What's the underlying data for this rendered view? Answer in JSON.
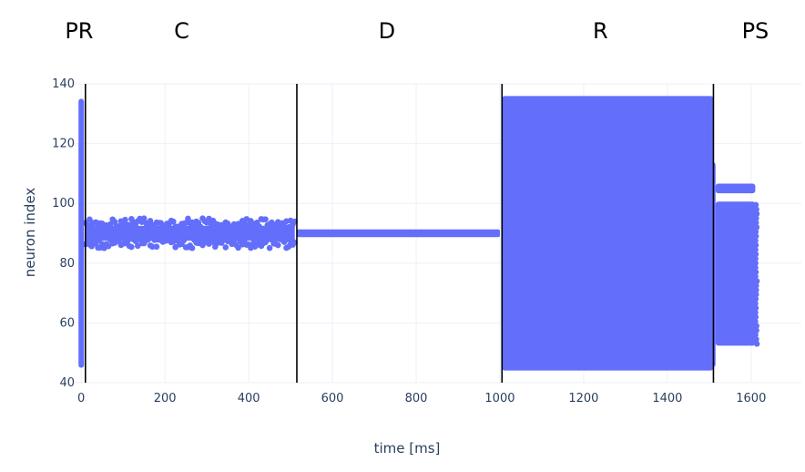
{
  "chart_data": {
    "type": "scatter",
    "title": "",
    "xlabel": "time [ms]",
    "ylabel": "neuron index",
    "xlim": [
      -20,
      1720
    ],
    "ylim": [
      40,
      140
    ],
    "x_ticks": [
      0,
      200,
      400,
      600,
      800,
      1000,
      1200,
      1400,
      1600
    ],
    "y_ticks": [
      40,
      60,
      80,
      100,
      120,
      140
    ],
    "grid": true,
    "legend": "none",
    "marker_color": "#636efa",
    "phase_lines": [
      10,
      515,
      1005,
      1510
    ],
    "phases": [
      {
        "label": "PR",
        "x_center": -5
      },
      {
        "label": "C",
        "x_center": 240
      },
      {
        "label": "D",
        "x_center": 730
      },
      {
        "label": "R",
        "x_center": 1240
      },
      {
        "label": "PS",
        "x_center": 1610
      }
    ],
    "series": [
      {
        "phase": "PR",
        "description_points": [
          {
            "x": 0,
            "y_min": 45,
            "y_max": 135
          }
        ]
      },
      {
        "phase": "C",
        "band": {
          "x_start": 10,
          "x_end": 510,
          "y_center": 90,
          "y_min": 85,
          "y_max": 95
        }
      },
      {
        "phase": "D",
        "band": {
          "x_start": 515,
          "x_end": 1000,
          "y_center": 90,
          "y_min": 89,
          "y_max": 91
        }
      },
      {
        "phase": "R",
        "band": {
          "x_start": 1005,
          "x_end": 1510,
          "y_min": 45,
          "y_max": 135
        }
      },
      {
        "phase": "PS",
        "bands": [
          {
            "x_start": 1510,
            "x_end": 1515,
            "y_min": 46,
            "y_max": 113
          },
          {
            "x_start": 1515,
            "x_end": 1610,
            "y_min": 104,
            "y_max": 106
          },
          {
            "x_start": 1515,
            "x_end": 1610,
            "y_min": 53,
            "y_max": 100
          }
        ]
      }
    ]
  }
}
